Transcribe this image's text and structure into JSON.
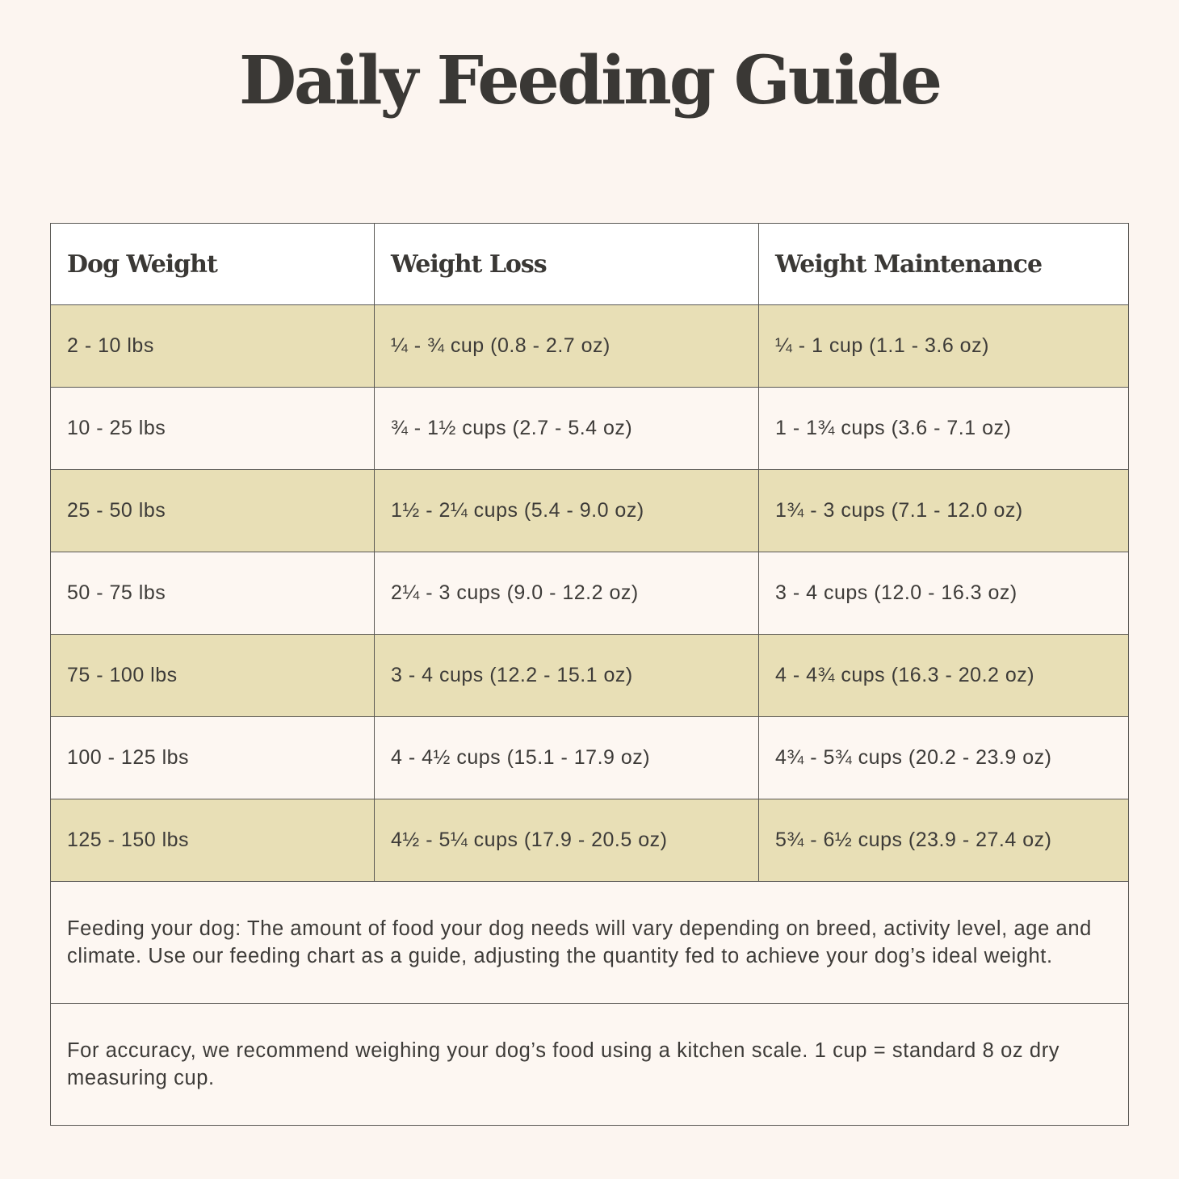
{
  "title": "Daily Feeding Guide",
  "table": {
    "headers": [
      "Dog Weight",
      "Weight Loss",
      "Weight Maintenance"
    ],
    "rows": [
      [
        "2 - 10 lbs",
        "¼ - ¾ cup (0.8 - 2.7 oz)",
        "¼ - 1 cup (1.1 - 3.6 oz)"
      ],
      [
        "10 - 25 lbs",
        "¾ - 1½ cups (2.7 - 5.4 oz)",
        "1 - 1¾ cups (3.6 - 7.1 oz)"
      ],
      [
        "25 - 50 lbs",
        "1½ - 2¼ cups (5.4 - 9.0 oz)",
        "1¾ - 3 cups (7.1 - 12.0 oz)"
      ],
      [
        "50 - 75 lbs",
        "2¼ - 3 cups (9.0 - 12.2 oz)",
        "3 - 4 cups (12.0 - 16.3 oz)"
      ],
      [
        "75 - 100 lbs",
        "3 - 4 cups (12.2 - 15.1 oz)",
        "4 - 4¾ cups (16.3 - 20.2 oz)"
      ],
      [
        "100 - 125 lbs",
        "4 - 4½ cups (15.1 - 17.9 oz)",
        "4¾ - 5¾ cups (20.2 - 23.9 oz)"
      ],
      [
        "125 - 150 lbs",
        "4½ - 5¼ cups (17.9 - 20.5 oz)",
        "5¾ - 6½ cups (23.9 - 27.4 oz)"
      ]
    ],
    "notes": [
      "Feeding your dog: The amount of food your dog needs will vary depending on breed, activity level, age and climate. Use our feeding chart as a guide, adjusting the quantity fed to achieve your dog’s ideal weight.",
      "For accuracy, we recommend weighing your dog’s food using a kitchen scale. 1 cup = standard 8 oz dry measuring cup."
    ]
  },
  "colors": {
    "background": "#fcf5f0",
    "shaded_row": "#e8dfb6",
    "header": "#ffffff",
    "text": "#3a3835"
  }
}
